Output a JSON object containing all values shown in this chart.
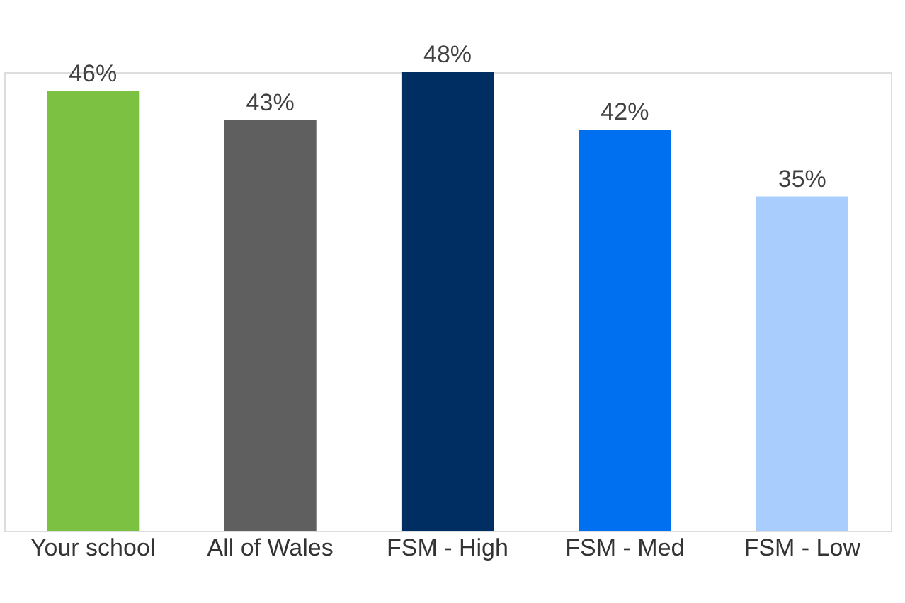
{
  "chart_data": {
    "type": "bar",
    "categories": [
      "Your school",
      "All of Wales",
      "FSM - High",
      "FSM - Med",
      "FSM - Low"
    ],
    "values": [
      46,
      43,
      48,
      42,
      35
    ],
    "value_labels": [
      "46%",
      "43%",
      "48%",
      "42%",
      "35%"
    ],
    "colors": [
      "#7dc142",
      "#5f5f5f",
      "#002d62",
      "#0070f0",
      "#a9cdfc"
    ],
    "tick_labels": "x",
    "grid": false
  }
}
